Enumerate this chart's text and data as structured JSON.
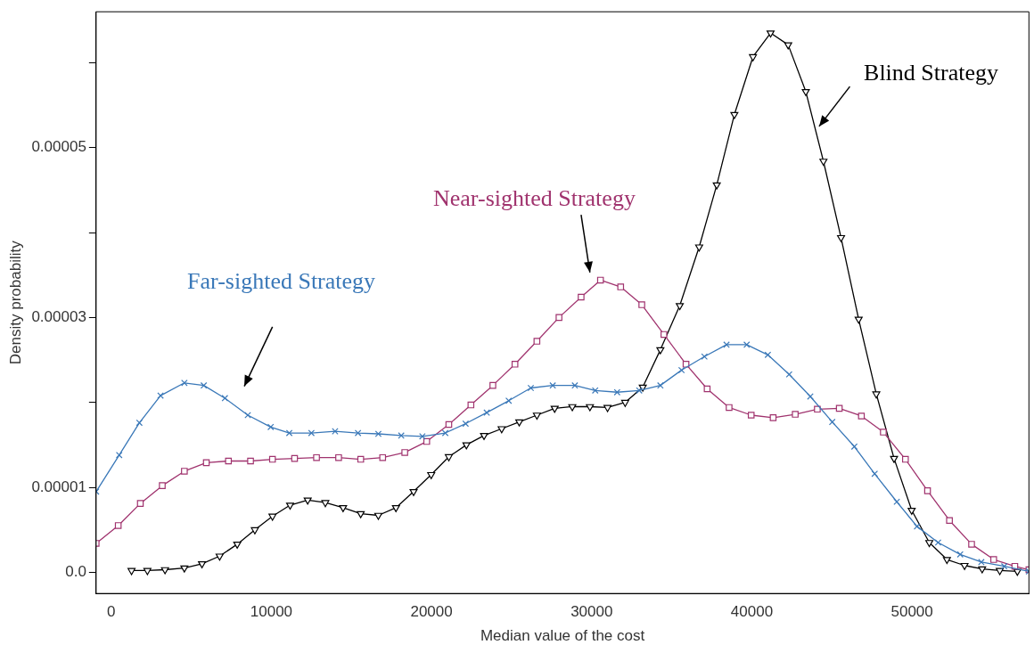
{
  "chart_data": {
    "type": "line",
    "xlabel": "Median value of the cost",
    "ylabel": "Density probability",
    "xlim": [
      -940,
      57300
    ],
    "ylim": [
      -2.5e-06,
      6.6e-05
    ],
    "xticks": [
      0,
      10000,
      20000,
      30000,
      40000,
      50000
    ],
    "yticks": [
      {
        "value": 0,
        "label": "0.0"
      },
      {
        "value": 1e-05,
        "label": "0.00001"
      },
      {
        "value": 2e-05,
        "label": null
      },
      {
        "value": 3e-05,
        "label": "0.00003"
      },
      {
        "value": 4e-05,
        "label": null
      },
      {
        "value": 5e-05,
        "label": "0.00005"
      },
      {
        "value": 6e-05,
        "label": null
      }
    ],
    "grid": false,
    "legend": false,
    "line_style": "solid",
    "series": [
      {
        "name": "Far-sighted Strategy",
        "color": "#3a78b8",
        "marker": "cross",
        "x": [
          -940,
          500,
          1760,
          3080,
          4570,
          5780,
          7100,
          8530,
          9960,
          11120,
          12500,
          13980,
          15410,
          16680,
          18110,
          19430,
          20860,
          22130,
          23450,
          24820,
          26200,
          27570,
          28950,
          30220,
          31590,
          32970,
          34290,
          35610,
          37040,
          38420,
          39680,
          41000,
          42330,
          43650,
          45020,
          46400,
          47670,
          49050,
          50310,
          51630,
          53010,
          54330,
          55760,
          57300
        ],
        "values": [
          9.5e-06,
          1.38e-05,
          1.76e-05,
          2.08e-05,
          2.23e-05,
          2.2e-05,
          2.05e-05,
          1.85e-05,
          1.71e-05,
          1.64e-05,
          1.64e-05,
          1.66e-05,
          1.64e-05,
          1.63e-05,
          1.61e-05,
          1.6e-05,
          1.64e-05,
          1.75e-05,
          1.88e-05,
          2.02e-05,
          2.17e-05,
          2.2e-05,
          2.2e-05,
          2.14e-05,
          2.12e-05,
          2.14e-05,
          2.2e-05,
          2.38e-05,
          2.54e-05,
          2.68e-05,
          2.68e-05,
          2.56e-05,
          2.33e-05,
          2.07e-05,
          1.77e-05,
          1.48e-05,
          1.16e-05,
          8.3e-06,
          5.4e-06,
          3.5e-06,
          2.1e-06,
          1.2e-06,
          7e-07,
          1e-07
        ]
      },
      {
        "name": "Near-sighted Strategy",
        "color": "#a0336e",
        "marker": "square",
        "x": [
          -940,
          440,
          1820,
          3190,
          4570,
          5940,
          7320,
          8700,
          10070,
          11450,
          12820,
          14200,
          15580,
          16950,
          18330,
          19700,
          21080,
          22460,
          23830,
          25210,
          26580,
          27960,
          29340,
          30550,
          31810,
          33130,
          34510,
          35890,
          37210,
          38580,
          39960,
          41330,
          42710,
          44090,
          45460,
          46840,
          48210,
          49590,
          50970,
          52340,
          53720,
          55100,
          56420,
          57300
        ],
        "values": [
          3.4e-06,
          5.5e-06,
          8.1e-06,
          1.02e-05,
          1.19e-05,
          1.29e-05,
          1.31e-05,
          1.31e-05,
          1.33e-05,
          1.34e-05,
          1.35e-05,
          1.35e-05,
          1.33e-05,
          1.35e-05,
          1.41e-05,
          1.54e-05,
          1.74e-05,
          1.97e-05,
          2.2e-05,
          2.45e-05,
          2.72e-05,
          3e-05,
          3.24e-05,
          3.44e-05,
          3.36e-05,
          3.15e-05,
          2.8e-05,
          2.45e-05,
          2.16e-05,
          1.94e-05,
          1.85e-05,
          1.82e-05,
          1.86e-05,
          1.92e-05,
          1.93e-05,
          1.84e-05,
          1.65e-05,
          1.33e-05,
          9.6e-06,
          6.1e-06,
          3.3e-06,
          1.5e-06,
          7e-07,
          3e-07
        ]
      },
      {
        "name": "Blind Strategy",
        "color": "#000000",
        "marker": "triangle",
        "x": [
          1270,
          2260,
          3360,
          4570,
          5670,
          6770,
          7870,
          8970,
          10070,
          11170,
          12270,
          13370,
          14480,
          15580,
          16680,
          17780,
          18880,
          19980,
          21080,
          22180,
          23280,
          24380,
          25480,
          26580,
          27690,
          28790,
          29890,
          30990,
          32090,
          33190,
          34290,
          35500,
          36710,
          37810,
          38910,
          40070,
          41170,
          42270,
          43370,
          44470,
          45570,
          46670,
          47770,
          48880,
          49980,
          51080,
          52180,
          53280,
          54380,
          55480,
          56580
        ],
        "values": [
          2e-07,
          2e-07,
          3e-07,
          5e-07,
          1e-06,
          1.9e-06,
          3.3e-06,
          5e-06,
          6.6e-06,
          7.9e-06,
          8.5e-06,
          8.2e-06,
          7.6e-06,
          6.9e-06,
          6.7e-06,
          7.6e-06,
          9.5e-06,
          1.15e-05,
          1.36e-05,
          1.5e-05,
          1.61e-05,
          1.69e-05,
          1.77e-05,
          1.85e-05,
          1.93e-05,
          1.95e-05,
          1.95e-05,
          1.94e-05,
          2e-05,
          2.18e-05,
          2.62e-05,
          3.14e-05,
          3.83e-05,
          4.56e-05,
          5.39e-05,
          6.07e-05,
          6.35e-05,
          6.21e-05,
          5.66e-05,
          4.84e-05,
          3.94e-05,
          2.98e-05,
          2.1e-05,
          1.34e-05,
          7.3e-06,
          3.5e-06,
          1.5e-06,
          8e-07,
          4e-07,
          2e-07,
          1e-07
        ]
      }
    ]
  }
}
